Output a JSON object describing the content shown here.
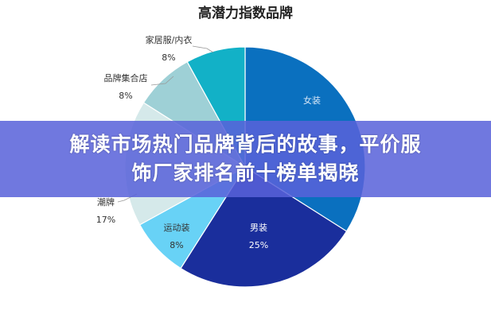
{
  "chart_data": {
    "type": "pie",
    "title": "高潜力指数品牌",
    "slices": [
      {
        "label": "女装",
        "value": 34,
        "value_label": "",
        "color": "#0a70bf"
      },
      {
        "label": "男装",
        "value": 25,
        "value_label": "25%",
        "color": "#1a2e9c"
      },
      {
        "label": "运动装",
        "value": 8,
        "value_label": "8%",
        "color": "#68d2f6"
      },
      {
        "label": "潮牌",
        "value": 17,
        "value_label": "17%",
        "color": "#d5e9ea"
      },
      {
        "label": "品牌集合店",
        "value": 8,
        "value_label": "8%",
        "color": "#9ed0d6"
      },
      {
        "label": "家居服/内衣",
        "value": 8,
        "value_label": "8%",
        "color": "#12b1c7"
      }
    ],
    "start": "top",
    "direction": "clockwise"
  },
  "banner": {
    "line1": "解读市场热门品牌背后的故事，平价服",
    "line2": "饰厂家排名前十榜单揭晓"
  }
}
